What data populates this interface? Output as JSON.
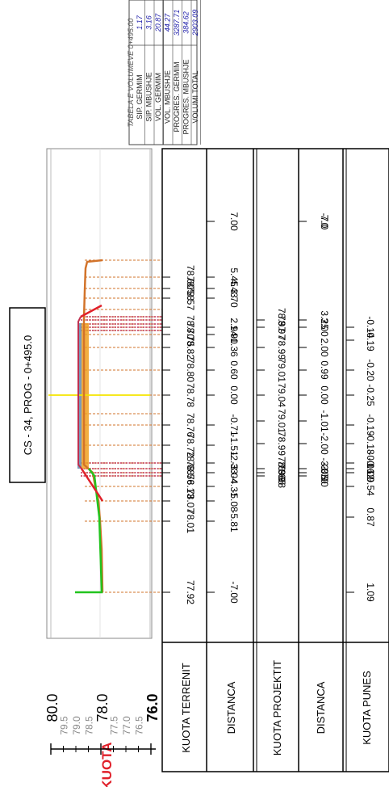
{
  "title": "CS - 34, PROG - 0+495.0",
  "kuota_label": "KUOTA",
  "axis": {
    "major_ticks": [
      "80.0",
      "78.0",
      "76.0"
    ],
    "minor_ticks": [
      "79.5",
      "79.0",
      "78.5",
      "77.5",
      "77.0",
      "76.5"
    ],
    "min": 76.0,
    "max": 80.0
  },
  "rows": {
    "kuota_terrenit": {
      "label": "KUOTA TERRENIT"
    },
    "distanca_1": {
      "label": "DISTANCA"
    },
    "kuota_projektit": {
      "label": "KUOTA PROJEKTIT"
    },
    "distanca_2": {
      "label": "DISTANCA"
    },
    "kuota_punes": {
      "label": "KUOTA PUNES"
    }
  },
  "chart_data": {
    "type": "cross-section",
    "terrain": {
      "distance": [
        "-7.00",
        "-5.81",
        "-5.08",
        "-4.31",
        "-3.04",
        "-2.33",
        "-1.51",
        "-0.71",
        "0.00",
        "0.60",
        "1.36",
        "1.90",
        "2.94",
        "3.70",
        "4.43",
        "5.45",
        "7.00"
      ],
      "elevation": [
        "77.92",
        "78.01",
        "78.07",
        "78.13",
        "78.56",
        "78.68",
        "78.72",
        "78.76",
        "78.78",
        "78.80",
        "78.82",
        "78.75",
        "78.70",
        "78.57",
        "78.58",
        "78.60",
        ""
      ]
    },
    "project": {
      "distance": [
        "-7.0",
        "-3.90",
        "-3.70",
        "-3.05",
        "-2.00",
        "-1.01",
        "0.00",
        "0.99",
        "2.00",
        "3.00",
        "3.25",
        "7.0"
      ],
      "elevation": [
        "",
        "78.98",
        "78.85",
        "78.96",
        "78.99",
        "79.01",
        "79.04",
        "79.01",
        "78.99",
        "78.97",
        "78.97",
        ""
      ]
    },
    "work": {
      "values": [
        "1.09",
        "0.87",
        "0.54",
        "0.09",
        "-0.12",
        "-0.16",
        "-0.18",
        "-0.19",
        "-0.25",
        "-0.20",
        "-0.19",
        "-0.14"
      ]
    }
  },
  "volume_table": {
    "header": "TABELA E VOLUMEVE 0+495.00",
    "rows": [
      {
        "label": "SIP. GERMIM",
        "value": "1.17"
      },
      {
        "label": "SIP. MBUSHJE",
        "value": "3.16"
      },
      {
        "label": "VOL. GERMIM",
        "value": "20.87"
      },
      {
        "label": "VOL. MBUSHJE",
        "value": "44.27"
      },
      {
        "label": "PROGRES. GERMIM",
        "value": "3287.71"
      },
      {
        "label": "PROGRES. MBUSHJE",
        "value": "384.62"
      },
      {
        "label": "VOLUMI TOTAL",
        "value": "2903.09"
      }
    ]
  },
  "colors": {
    "kuota": "#e0202a",
    "red": "#e0202a",
    "green": "#22c41e",
    "orange": "#d2732a",
    "fill_orange": "#f0a020",
    "steel": "#6e8fb0",
    "yellow": "#f5e400",
    "value_blue": "#1a1aa8"
  }
}
